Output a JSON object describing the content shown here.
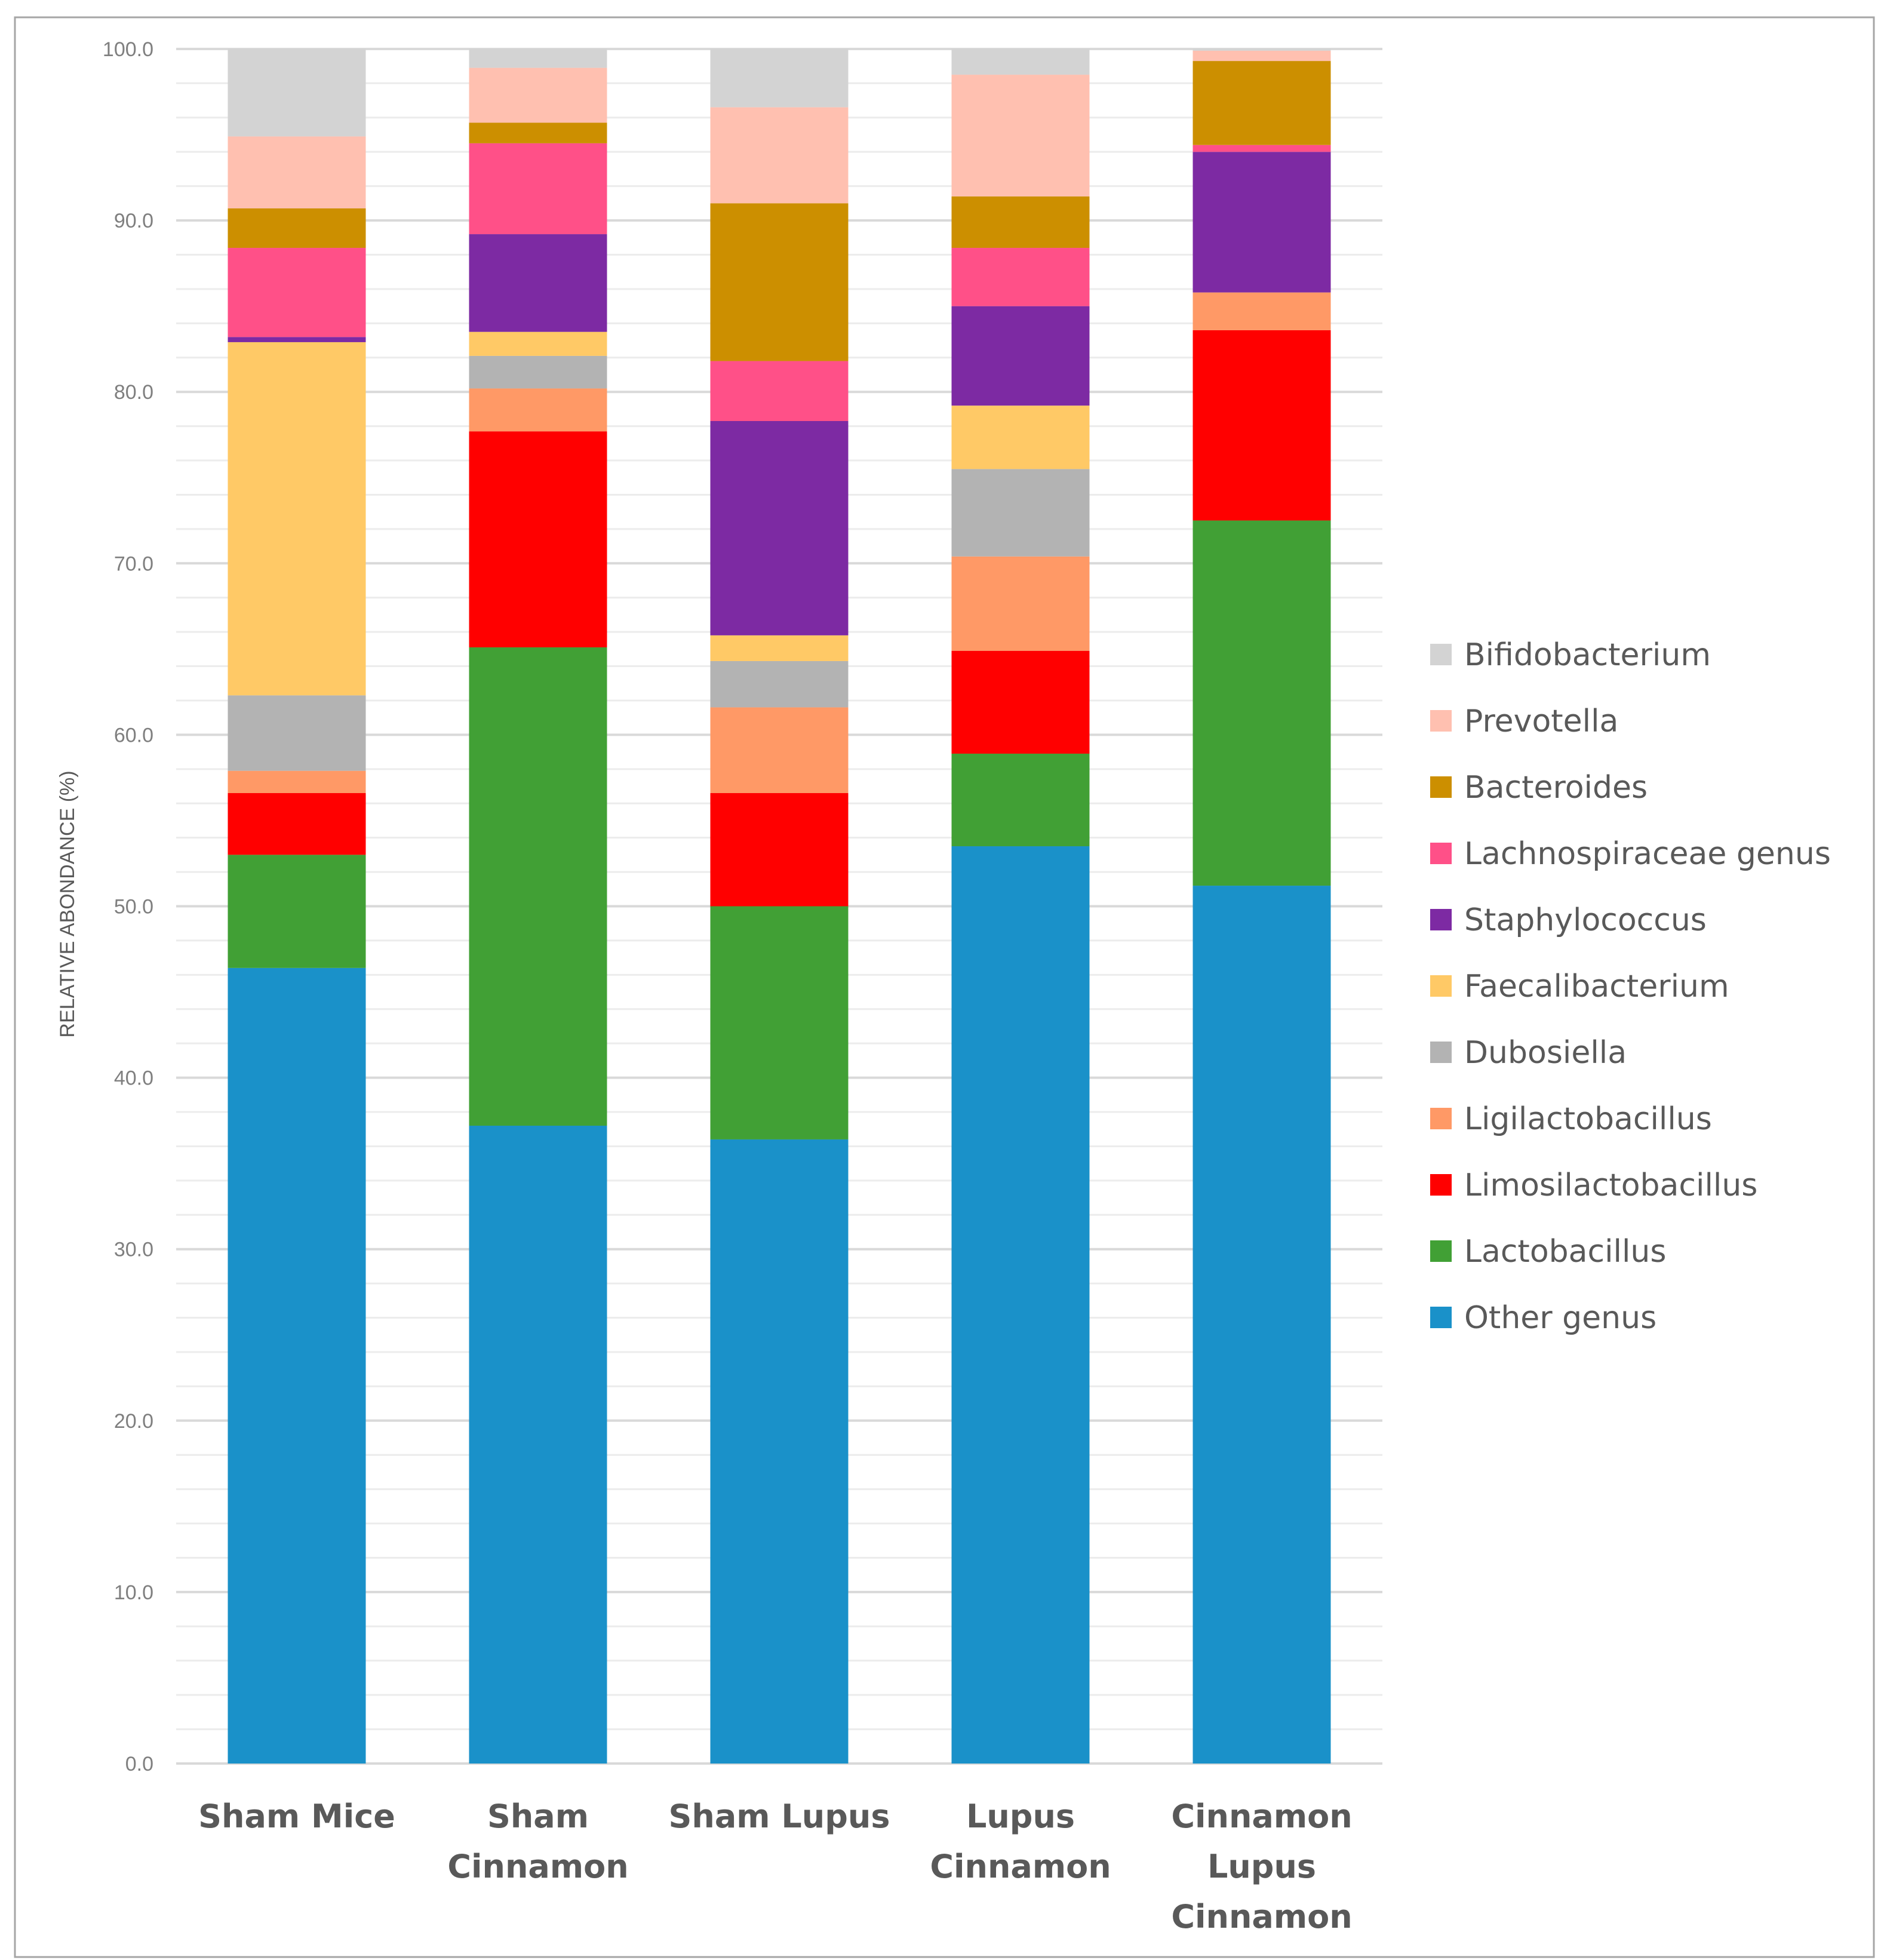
{
  "chart_data": {
    "type": "bar",
    "stacked": true,
    "title": "",
    "xlabel": "",
    "ylabel": "RELATIVE ABONDANCE (%)",
    "ylim": [
      0,
      100
    ],
    "yticks": [
      "0.0",
      "10.0",
      "20.0",
      "30.0",
      "40.0",
      "50.0",
      "60.0",
      "70.0",
      "80.0",
      "90.0",
      "100.0"
    ],
    "grid": true,
    "legend_position": "right",
    "categories": [
      [
        "Sham Mice"
      ],
      [
        "Sham",
        "Cinnamon"
      ],
      [
        "Sham Lupus"
      ],
      [
        "Lupus",
        "Cinnamon"
      ],
      [
        "Cinnamon",
        "Lupus",
        "Cinnamon"
      ]
    ],
    "series": [
      {
        "name": "Other genus",
        "color": "#1a91c9",
        "values": [
          46.4,
          37.2,
          36.4,
          53.5,
          51.2
        ]
      },
      {
        "name": "Lactobacillus",
        "color": "#41a035",
        "values": [
          6.6,
          27.9,
          13.6,
          5.4,
          21.3
        ]
      },
      {
        "name": "Limosilactobacillus",
        "color": "#ff0000",
        "values": [
          3.6,
          12.6,
          6.6,
          6.0,
          11.1
        ]
      },
      {
        "name": "Ligilactobacillus",
        "color": "#ff9966",
        "values": [
          1.3,
          2.5,
          5.0,
          5.5,
          2.2
        ]
      },
      {
        "name": "Dubosiella",
        "color": "#b3b3b3",
        "values": [
          4.4,
          1.9,
          2.7,
          5.1,
          0.0
        ]
      },
      {
        "name": "Faecalibacterium",
        "color": "#ffc966",
        "values": [
          20.6,
          1.4,
          1.5,
          3.7,
          0.0
        ]
      },
      {
        "name": "Staphylococcus",
        "color": "#7d2aa3",
        "values": [
          0.3,
          5.7,
          12.5,
          5.8,
          8.2
        ]
      },
      {
        "name": "Lachnospiraceae genus",
        "color": "#ff5088",
        "values": [
          5.2,
          5.3,
          3.5,
          3.4,
          0.4
        ]
      },
      {
        "name": "Bacteroides",
        "color": "#cc8f00",
        "values": [
          2.3,
          1.2,
          9.2,
          3.0,
          4.9
        ]
      },
      {
        "name": "Prevotella",
        "color": "#ffc0b0",
        "values": [
          4.2,
          3.2,
          5.6,
          7.1,
          0.6
        ]
      },
      {
        "name": "Bifidobacterium",
        "color": "#d3d3d3",
        "values": [
          5.1,
          1.1,
          3.4,
          1.5,
          0.1
        ]
      }
    ]
  }
}
